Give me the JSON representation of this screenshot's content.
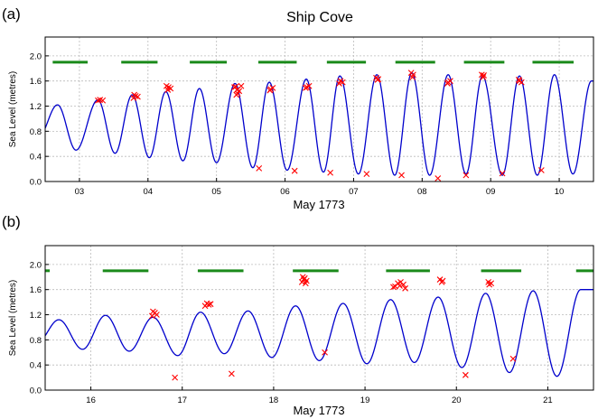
{
  "title": "Ship Cove",
  "colors": {
    "curve": "#0000cc",
    "obs": "#ff0000",
    "daylight": "#1a8a1a"
  },
  "chart_data": [
    {
      "panel_label": "(a)",
      "type": "line",
      "xlabel": "May 1773",
      "ylabel": "Sea Level (metres)",
      "xlim": [
        2.5,
        10.5
      ],
      "ylim": [
        0,
        2.3
      ],
      "xticks": [
        3,
        4,
        5,
        6,
        7,
        8,
        9,
        10
      ],
      "xtick_labels": [
        "03",
        "04",
        "05",
        "06",
        "07",
        "08",
        "09",
        "10"
      ],
      "yticks": [
        0.0,
        0.4,
        0.8,
        1.2,
        1.6,
        2.0
      ],
      "ytick_labels": [
        "0.0",
        "0.4",
        "0.8",
        "1.2",
        "1.6",
        "2.0"
      ],
      "grid": true,
      "tide_curve": {
        "hw_times": [
          2.68,
          3.27,
          3.77,
          4.26,
          4.75,
          5.27,
          5.77,
          6.31,
          6.8,
          7.34,
          7.85,
          8.38,
          8.88,
          9.42,
          9.93,
          10.47
        ],
        "hw_levels": [
          1.22,
          1.3,
          1.38,
          1.43,
          1.48,
          1.56,
          1.58,
          1.63,
          1.68,
          1.7,
          1.73,
          1.7,
          1.68,
          1.68,
          1.7,
          1.6
        ],
        "lw_times": [
          2.4,
          2.95,
          3.52,
          4.02,
          4.51,
          5.0,
          5.53,
          6.03,
          6.56,
          7.07,
          7.6,
          8.11,
          8.64,
          9.17,
          9.68,
          10.2
        ],
        "lw_levels": [
          0.7,
          0.5,
          0.45,
          0.38,
          0.33,
          0.3,
          0.22,
          0.18,
          0.15,
          0.12,
          0.1,
          0.1,
          0.12,
          0.1,
          0.1,
          0.12
        ]
      },
      "observations": {
        "x": [
          3.27,
          3.3,
          3.34,
          3.8,
          3.82,
          3.85,
          3.79,
          4.27,
          4.3,
          4.33,
          4.29,
          5.26,
          5.3,
          5.33,
          5.28,
          5.31,
          5.36,
          5.29,
          5.79,
          5.82,
          5.78,
          6.32,
          6.35,
          6.3,
          6.81,
          6.84,
          6.79,
          7.33,
          7.36,
          7.35,
          7.84,
          7.87,
          7.86,
          8.38,
          8.41,
          8.37,
          8.87,
          8.9,
          8.89,
          9.42,
          9.45,
          9.41,
          5.62,
          6.14,
          6.66,
          7.19,
          7.7,
          8.23,
          8.64,
          9.17,
          9.74
        ],
        "y": [
          1.29,
          1.3,
          1.29,
          1.38,
          1.36,
          1.35,
          1.33,
          1.52,
          1.5,
          1.48,
          1.46,
          1.5,
          1.46,
          1.44,
          1.51,
          1.4,
          1.52,
          1.38,
          1.47,
          1.49,
          1.45,
          1.5,
          1.52,
          1.49,
          1.6,
          1.58,
          1.56,
          1.65,
          1.63,
          1.62,
          1.73,
          1.7,
          1.66,
          1.58,
          1.6,
          1.56,
          1.7,
          1.69,
          1.66,
          1.6,
          1.58,
          1.62,
          0.21,
          0.17,
          0.14,
          0.12,
          0.1,
          0.05,
          0.1,
          0.13,
          0.18
        ]
      },
      "daylight": [
        [
          2.61,
          3.12
        ],
        [
          3.61,
          4.14
        ],
        [
          4.61,
          5.15
        ],
        [
          5.61,
          6.17
        ],
        [
          6.61,
          7.18
        ],
        [
          7.61,
          8.19
        ],
        [
          8.61,
          9.2
        ],
        [
          9.61,
          10.21
        ]
      ],
      "daylight_level": 1.9
    },
    {
      "panel_label": "(b)",
      "type": "line",
      "xlabel": "May 1773",
      "ylabel": "Sea Level (metres)",
      "xlim": [
        15.5,
        21.5
      ],
      "ylim": [
        0,
        2.3
      ],
      "xticks": [
        16,
        17,
        18,
        19,
        20,
        21
      ],
      "xtick_labels": [
        "16",
        "17",
        "18",
        "19",
        "20",
        "21"
      ],
      "yticks": [
        0.0,
        0.4,
        0.8,
        1.2,
        1.6,
        2.0
      ],
      "ytick_labels": [
        "0.0",
        "0.4",
        "0.8",
        "1.2",
        "1.6",
        "2.0"
      ],
      "grid": true,
      "tide_curve": {
        "hw_times": [
          15.65,
          16.16,
          16.68,
          17.2,
          17.72,
          18.24,
          18.76,
          19.28,
          19.8,
          20.32,
          20.84,
          21.36
        ],
        "hw_levels": [
          1.12,
          1.19,
          1.16,
          1.24,
          1.26,
          1.34,
          1.38,
          1.44,
          1.48,
          1.54,
          1.58,
          1.6
        ],
        "lw_times": [
          15.41,
          15.91,
          16.42,
          16.95,
          17.46,
          17.98,
          18.5,
          19.02,
          19.54,
          20.06,
          20.58,
          21.1
        ],
        "lw_levels": [
          0.75,
          0.65,
          0.62,
          0.55,
          0.58,
          0.52,
          0.47,
          0.42,
          0.44,
          0.36,
          0.28,
          0.22
        ]
      },
      "observations": {
        "x": [
          16.68,
          16.7,
          16.72,
          16.67,
          17.27,
          17.29,
          17.31,
          17.25,
          18.32,
          18.34,
          18.36,
          18.31,
          18.35,
          18.33,
          19.33,
          19.36,
          19.39,
          19.42,
          19.31,
          19.38,
          19.44,
          19.82,
          19.85,
          19.84,
          20.35,
          20.38,
          20.36,
          16.92,
          17.54,
          18.56,
          20.1,
          20.62
        ],
        "y": [
          1.25,
          1.23,
          1.2,
          1.18,
          1.38,
          1.36,
          1.37,
          1.34,
          1.8,
          1.78,
          1.74,
          1.72,
          1.7,
          1.76,
          1.65,
          1.7,
          1.72,
          1.68,
          1.64,
          1.66,
          1.62,
          1.76,
          1.74,
          1.72,
          1.72,
          1.7,
          1.68,
          0.2,
          0.26,
          0.6,
          0.24,
          0.5
        ]
      },
      "daylight": [
        [
          15.48,
          15.55
        ],
        [
          16.13,
          16.63
        ],
        [
          17.17,
          17.67
        ],
        [
          18.21,
          18.71
        ],
        [
          19.23,
          19.71
        ],
        [
          20.27,
          20.71
        ],
        [
          21.31,
          21.5
        ]
      ],
      "daylight_level": 1.9
    }
  ]
}
